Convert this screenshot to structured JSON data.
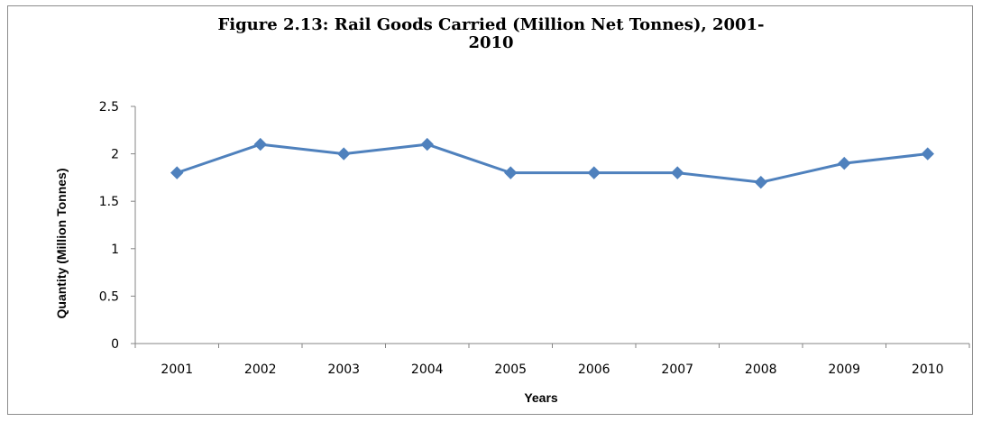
{
  "chart_data": {
    "type": "line",
    "title_line1": "Figure 2.13: Rail Goods Carried (Million  Net Tonnes), 2001-",
    "title_line2": "2010",
    "xlabel": "Years",
    "ylabel": "Quantity (Million Tonnes)",
    "categories": [
      "2001",
      "2002",
      "2003",
      "2004",
      "2005",
      "2006",
      "2007",
      "2008",
      "2009",
      "2010"
    ],
    "series": [
      {
        "values": [
          1.8,
          2.1,
          2.0,
          2.1,
          1.8,
          1.8,
          1.8,
          1.7,
          1.9,
          2.0
        ]
      }
    ],
    "ylim": [
      0,
      2.5
    ],
    "yticks": [
      "0",
      "0.5",
      "1",
      "1.5",
      "2",
      "2.5"
    ],
    "grid": false,
    "legend": "none",
    "colors": {
      "line": "#4f81bd",
      "axis": "#868686"
    }
  }
}
